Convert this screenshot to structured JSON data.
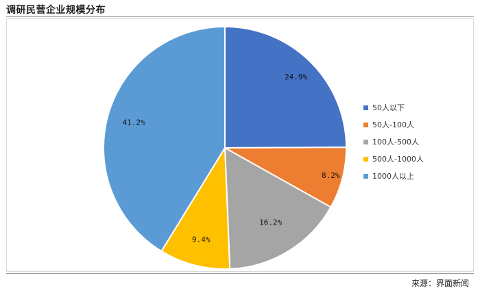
{
  "title": "调研民营企业规模分布",
  "source": "来源：界面新闻",
  "chart_data": {
    "type": "pie",
    "categories": [
      "50人以下",
      "50人-100人",
      "100人-500人",
      "500人-1000人",
      "1000人以上"
    ],
    "values": [
      24.9,
      8.2,
      16.2,
      9.4,
      41.2
    ],
    "value_labels": [
      "24.9%",
      "8.2%",
      "16.2%",
      "9.4%",
      "41.2%"
    ],
    "colors": [
      "#4472C4",
      "#ED7D31",
      "#A5A5A5",
      "#FFC000",
      "#5B9BD5"
    ],
    "legend_position": "right"
  }
}
